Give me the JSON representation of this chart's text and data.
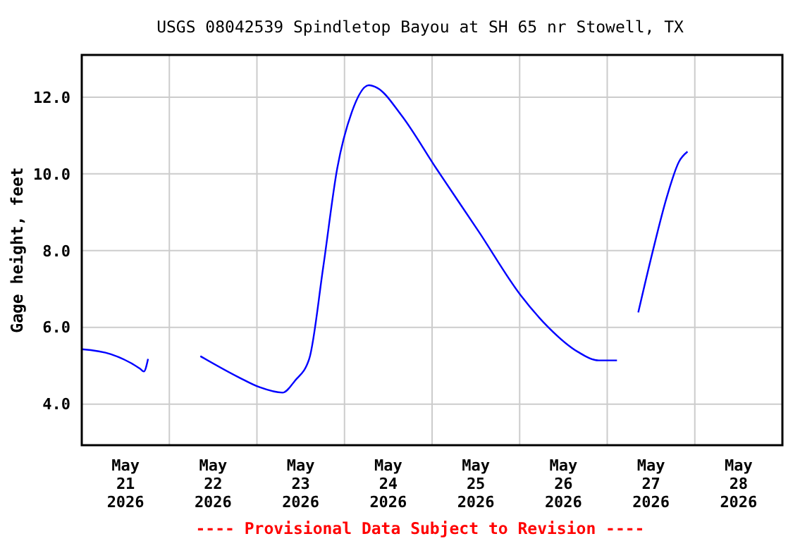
{
  "chart_data": {
    "type": "line",
    "title": "USGS 08042539 Spindletop Bayou at SH 65 nr Stowell, TX",
    "ylabel": "Gage height, feet",
    "annotations": [
      "---- Provisional Data Subject to Revision ----"
    ],
    "x": [
      "2026-05-21T00:00",
      "2026-05-21T08:00",
      "2026-05-21T16:00",
      "2026-05-21T17:00",
      "2026-05-21T18:10",
      "2026-05-22T02:00",
      "2026-05-22T08:30",
      "2026-05-22T19:00",
      "2026-05-23T00:45",
      "2026-05-23T07:00",
      "2026-05-23T10:30",
      "2026-05-23T14:20",
      "2026-05-23T18:10",
      "2026-05-23T22:00",
      "2026-05-24T02:00",
      "2026-05-24T06:40",
      "2026-05-24T09:00",
      "2026-05-24T15:30",
      "2026-05-25T01:10",
      "2026-05-25T12:50",
      "2026-05-26T00:20",
      "2026-05-26T08:00",
      "2026-05-26T16:00",
      "2026-05-26T21:40",
      "2026-05-27T02:40",
      "2026-05-27T05:00",
      "2026-05-27T08:30",
      "2026-05-27T12:20",
      "2026-05-27T16:20",
      "2026-05-27T19:40",
      "2026-05-27T22:00"
    ],
    "series": [
      {
        "color": "#0000ff",
        "values": [
          5.43,
          5.3,
          4.92,
          4.85,
          5.18,
          null,
          5.25,
          4.7,
          4.44,
          4.3,
          4.62,
          5.18,
          7.57,
          10.14,
          11.61,
          12.31,
          12.24,
          11.54,
          10.14,
          8.49,
          6.83,
          5.99,
          5.36,
          5.14,
          5.14,
          null,
          6.39,
          7.93,
          9.4,
          10.32,
          10.58
        ]
      }
    ],
    "xlim": [
      "2026-05-21T00:00",
      "2026-05-29T00:00"
    ],
    "xticks": [
      {
        "value": "2026-05-21T12:00",
        "label": "May 21 2026"
      },
      {
        "value": "2026-05-22T12:00",
        "label": "May 22 2026"
      },
      {
        "value": "2026-05-23T12:00",
        "label": "May 23 2026"
      },
      {
        "value": "2026-05-24T12:00",
        "label": "May 24 2026"
      },
      {
        "value": "2026-05-25T12:00",
        "label": "May 25 2026"
      },
      {
        "value": "2026-05-26T12:00",
        "label": "May 26 2026"
      },
      {
        "value": "2026-05-27T12:00",
        "label": "May 27 2026"
      },
      {
        "value": "2026-05-28T12:00",
        "label": "May 28 2026"
      },
      {
        "value": "2026-05-22T00:00",
        "label": null
      },
      {
        "value": "2026-05-23T00:00",
        "label": null
      },
      {
        "value": "2026-05-24T00:00",
        "label": null
      },
      {
        "value": "2026-05-25T00:00",
        "label": null
      },
      {
        "value": "2026-05-26T00:00",
        "label": null
      },
      {
        "value": "2026-05-27T00:00",
        "label": null
      },
      {
        "value": "2026-05-28T00:00",
        "label": null
      }
    ],
    "ylim": [
      2.93,
      13.1
    ],
    "yticks": [
      {
        "value": 4,
        "label": "4.0"
      },
      {
        "value": 6,
        "label": "6.0"
      },
      {
        "value": 8,
        "label": "8.0"
      },
      {
        "value": 10,
        "label": "10.0"
      },
      {
        "value": 12,
        "label": "12.0"
      }
    ],
    "grid": true,
    "marker": "none",
    "line_style": "solid"
  }
}
